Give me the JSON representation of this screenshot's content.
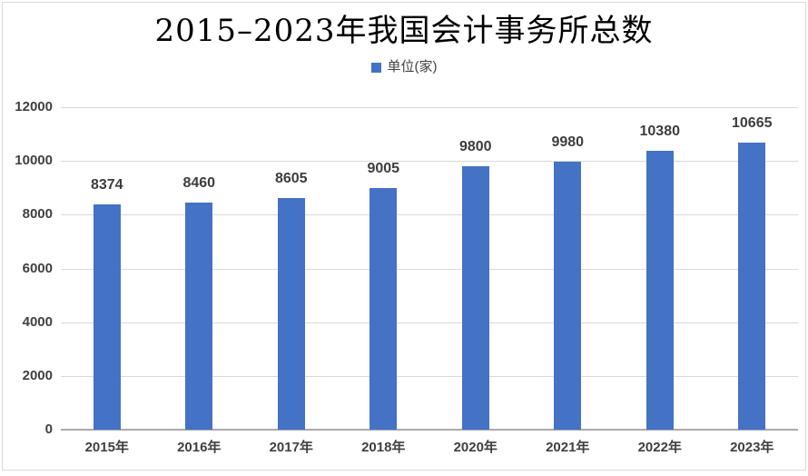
{
  "chart_data": {
    "type": "bar",
    "title": "2015–2023年我国会计事务所总数",
    "legend_entries": [
      "单位(家)"
    ],
    "legend_position": "top",
    "categories": [
      "2015年",
      "2016年",
      "2017年",
      "2018年",
      "2020年",
      "2021年",
      "2022年",
      "2023年"
    ],
    "values": [
      8374,
      8460,
      8605,
      9005,
      9800,
      9980,
      10380,
      10665
    ],
    "xlabel": "",
    "ylabel": "",
    "ylim": [
      0,
      12000
    ],
    "yticks": [
      0,
      2000,
      4000,
      6000,
      8000,
      10000,
      12000
    ],
    "grid": true,
    "data_labels": true
  },
  "colors": {
    "bar": "#4472C4",
    "gridline": "#D9D9D9",
    "axis_line": "#ABABAB",
    "tick_text": "#404040",
    "data_label_text": "#3d3d3d",
    "title_text": "#000000",
    "frame_border": "#D9D9D9",
    "background": "#FFFFFF"
  }
}
